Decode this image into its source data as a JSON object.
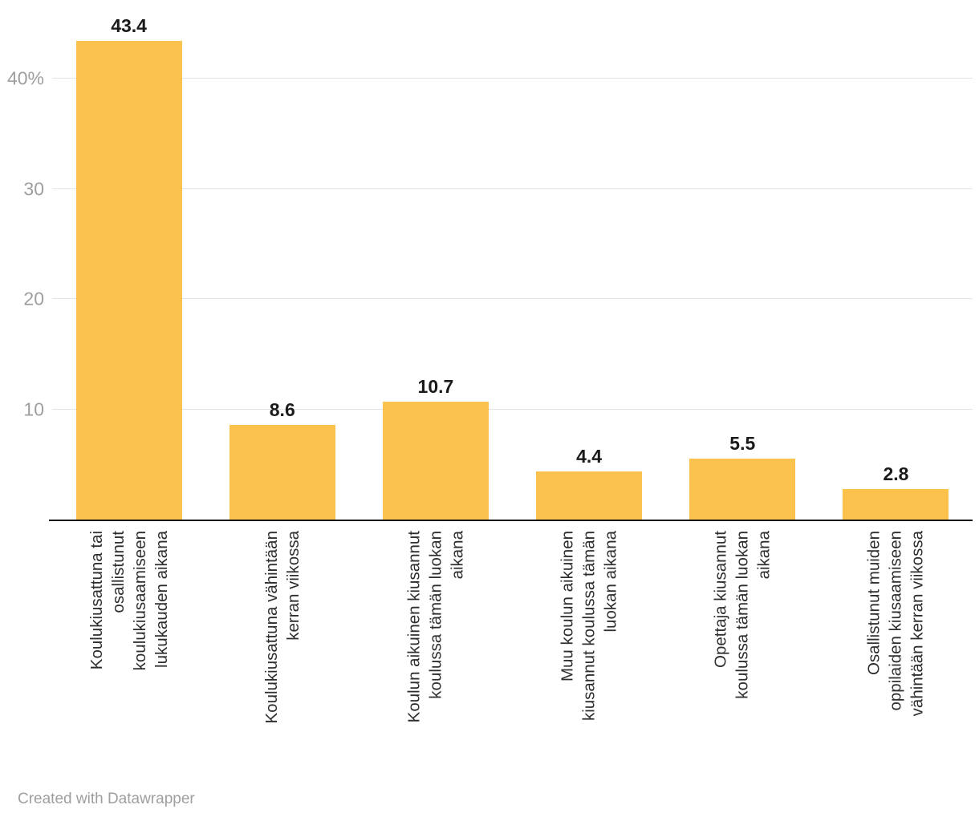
{
  "chart_data": {
    "type": "bar",
    "categories": [
      "Koulukiusattuna tai\nosallistunut\nkoulukiusaamiseen\nlukukauden aikana",
      "Koulukiusattuna vähintään\nkerran viikossa",
      "Koulun aikuinen kiusannut\nkoulussa tämän luokan\naikana",
      "Muu koulun aikuinen\nkiusannut koulussa tämän\nluokan aikana",
      "Opettaja kiusannut\nkoulussa tämän luokan\naikana",
      "Osallistunut muiden\noppilaiden kiusaamiseen\nvähintään kerran viikossa"
    ],
    "values": [
      43.4,
      8.6,
      10.7,
      4.4,
      5.5,
      2.8
    ],
    "title": "",
    "xlabel": "",
    "ylabel": "",
    "ylim": [
      0,
      45
    ],
    "yticks": [
      "40%",
      "30",
      "20",
      "10"
    ],
    "ytick_values": [
      40,
      30,
      20,
      10
    ],
    "grid": "horizontal",
    "legend": "none",
    "bar_color": "#FBC24D",
    "value_labels_shown": true
  },
  "footer": {
    "attribution": "Created with Datawrapper"
  }
}
